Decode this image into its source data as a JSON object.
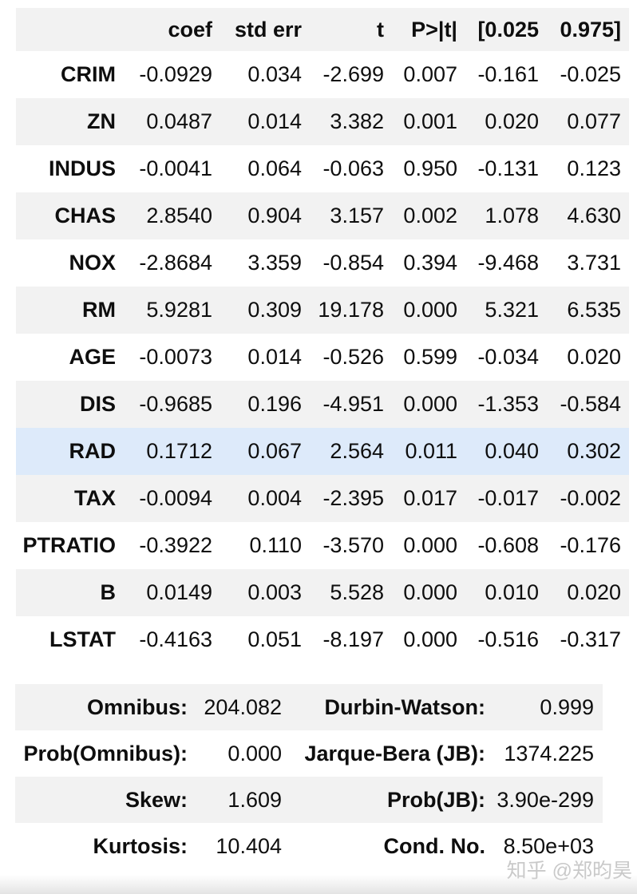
{
  "colors": {
    "stripe_background": "#f2f2f2",
    "highlight_row_background": "#ddeafa",
    "text": "#0e0e0e",
    "watermark": "#c9c9c9"
  },
  "chart_data": {
    "type": "table",
    "columns": [
      "",
      "coef",
      "std err",
      "t",
      "P>|t|",
      "[0.025",
      "0.975]"
    ],
    "rows": [
      [
        "CRIM",
        "-0.0929",
        "0.034",
        "-2.699",
        "0.007",
        "-0.161",
        "-0.025"
      ],
      [
        "ZN",
        "0.0487",
        "0.014",
        "3.382",
        "0.001",
        "0.020",
        "0.077"
      ],
      [
        "INDUS",
        "-0.0041",
        "0.064",
        "-0.063",
        "0.950",
        "-0.131",
        "0.123"
      ],
      [
        "CHAS",
        "2.8540",
        "0.904",
        "3.157",
        "0.002",
        "1.078",
        "4.630"
      ],
      [
        "NOX",
        "-2.8684",
        "3.359",
        "-0.854",
        "0.394",
        "-9.468",
        "3.731"
      ],
      [
        "RM",
        "5.9281",
        "0.309",
        "19.178",
        "0.000",
        "5.321",
        "6.535"
      ],
      [
        "AGE",
        "-0.0073",
        "0.014",
        "-0.526",
        "0.599",
        "-0.034",
        "0.020"
      ],
      [
        "DIS",
        "-0.9685",
        "0.196",
        "-4.951",
        "0.000",
        "-1.353",
        "-0.584"
      ],
      [
        "RAD",
        "0.1712",
        "0.067",
        "2.564",
        "0.011",
        "0.040",
        "0.302"
      ],
      [
        "TAX",
        "-0.0094",
        "0.004",
        "-2.395",
        "0.017",
        "-0.017",
        "-0.002"
      ],
      [
        "PTRATIO",
        "-0.3922",
        "0.110",
        "-3.570",
        "0.000",
        "-0.608",
        "-0.176"
      ],
      [
        "B",
        "0.0149",
        "0.003",
        "5.528",
        "0.000",
        "0.010",
        "0.020"
      ],
      [
        "LSTAT",
        "-0.4163",
        "0.051",
        "-8.197",
        "0.000",
        "-0.516",
        "-0.317"
      ]
    ],
    "highlighted_row": "RAD",
    "diagnostics": [
      [
        "Omnibus:",
        "204.082",
        "Durbin-Watson:",
        "0.999"
      ],
      [
        "Prob(Omnibus):",
        "0.000",
        "Jarque-Bera (JB):",
        "1374.225"
      ],
      [
        "Skew:",
        "1.609",
        "Prob(JB):",
        "3.90e-299"
      ],
      [
        "Kurtosis:",
        "10.404",
        "Cond. No.",
        "8.50e+03"
      ]
    ]
  },
  "watermark": {
    "text": "知乎 @郑昀昊"
  }
}
